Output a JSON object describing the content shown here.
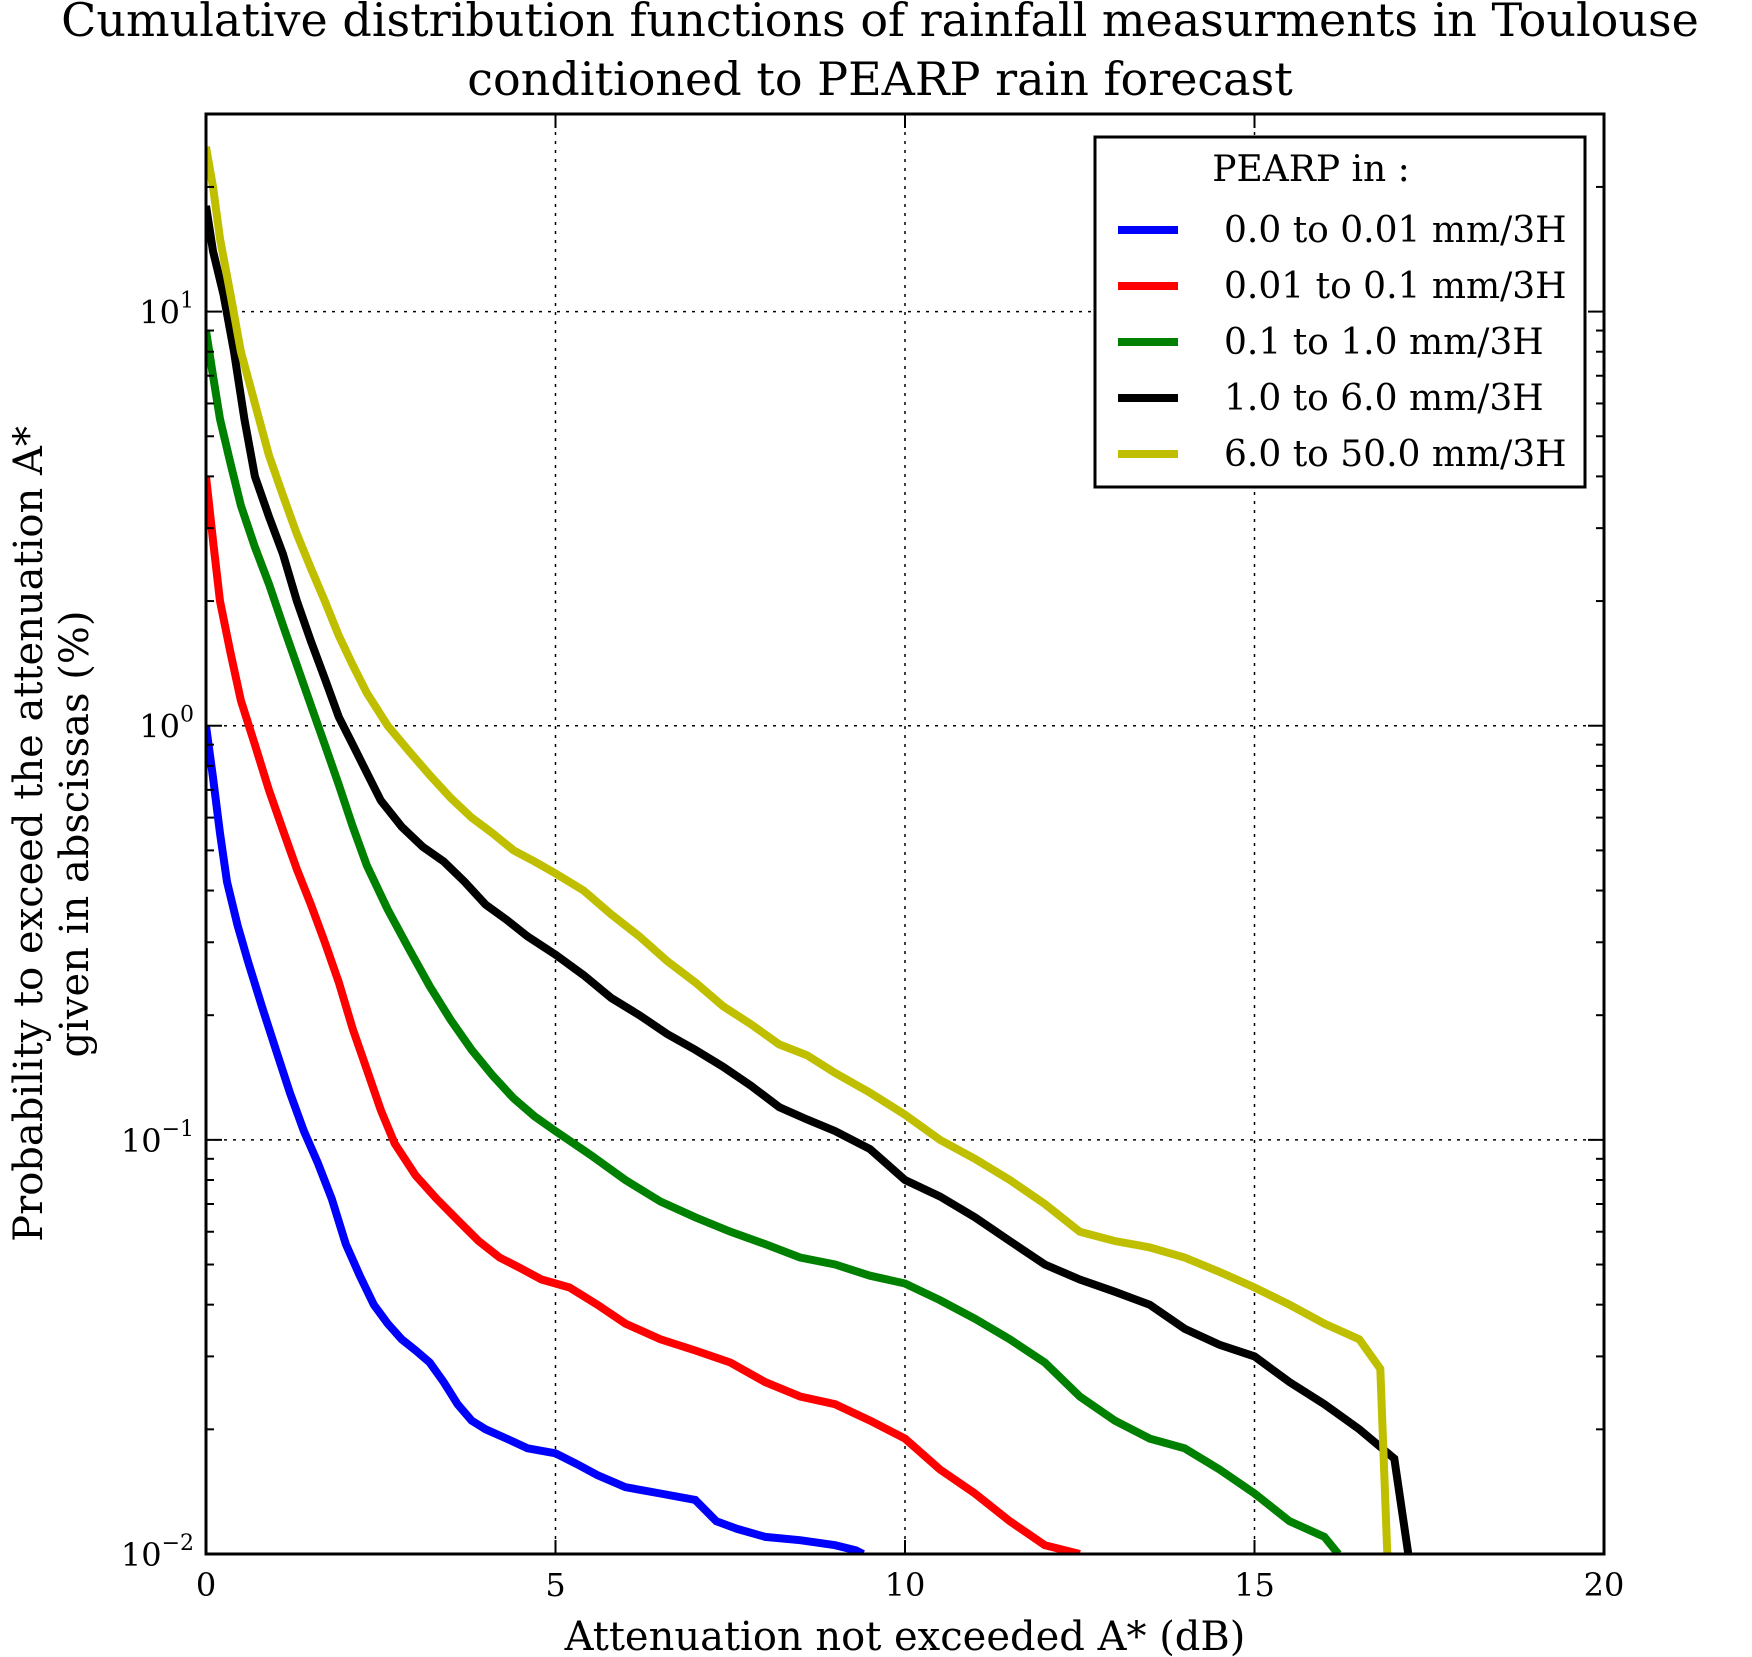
{
  "chart_data": {
    "type": "line",
    "title": "Cumulative distribution functions of rainfall measurments in Toulouse",
    "subtitle": "conditioned to PEARP rain forecast",
    "xlabel": "Attenuation not exceeded A* (dB)",
    "ylabel": "Probability to exceed the attenuation A*",
    "ylabel2": "given in abscissas (%)",
    "xlim": [
      0,
      20
    ],
    "ylim": [
      0.01,
      30
    ],
    "yscale": "log",
    "grid": true,
    "x_ticks": [
      "0",
      "5",
      "10",
      "15",
      "20"
    ],
    "y_ticks": [
      {
        "base": "10",
        "exp": "1"
      },
      {
        "base": "10",
        "exp": "0"
      },
      {
        "base": "10",
        "exp": "−1"
      },
      {
        "base": "10",
        "exp": "−2"
      }
    ],
    "legend": {
      "title": "PEARP in :",
      "position": "upper right"
    },
    "series": [
      {
        "name": "0.0 to 0.01 mm/3H",
        "color": "#0000ff",
        "x": [
          0.0,
          0.1,
          0.2,
          0.3,
          0.45,
          0.6,
          0.8,
          1.0,
          1.2,
          1.4,
          1.6,
          1.8,
          2.0,
          2.2,
          2.4,
          2.6,
          2.8,
          3.0,
          3.2,
          3.4,
          3.6,
          3.8,
          4.0,
          4.3,
          4.6,
          5.0,
          5.3,
          5.6,
          6.0,
          6.5,
          7.0,
          7.3,
          7.6,
          8.0,
          8.5,
          9.0,
          9.3,
          9.4
        ],
        "y": [
          1.0,
          0.75,
          0.55,
          0.42,
          0.33,
          0.27,
          0.21,
          0.165,
          0.13,
          0.105,
          0.088,
          0.072,
          0.056,
          0.047,
          0.04,
          0.036,
          0.033,
          0.031,
          0.029,
          0.026,
          0.023,
          0.021,
          0.02,
          0.019,
          0.018,
          0.0175,
          0.0165,
          0.0155,
          0.0145,
          0.014,
          0.0135,
          0.012,
          0.0115,
          0.011,
          0.0108,
          0.0105,
          0.0102,
          0.01
        ]
      },
      {
        "name": "0.01 to 0.1 mm/3H",
        "color": "#ff0000",
        "x": [
          0.0,
          0.1,
          0.2,
          0.35,
          0.5,
          0.7,
          0.9,
          1.1,
          1.3,
          1.5,
          1.7,
          1.9,
          2.1,
          2.3,
          2.5,
          2.7,
          3.0,
          3.3,
          3.6,
          3.9,
          4.2,
          4.5,
          4.8,
          5.2,
          5.6,
          6.0,
          6.5,
          7.0,
          7.5,
          8.0,
          8.5,
          9.0,
          9.5,
          10.0,
          10.5,
          11.0,
          11.5,
          12.0,
          12.5
        ],
        "y": [
          4.0,
          2.8,
          2.0,
          1.5,
          1.15,
          0.9,
          0.7,
          0.56,
          0.45,
          0.37,
          0.3,
          0.24,
          0.185,
          0.148,
          0.118,
          0.098,
          0.082,
          0.072,
          0.064,
          0.057,
          0.052,
          0.049,
          0.046,
          0.044,
          0.04,
          0.036,
          0.033,
          0.031,
          0.029,
          0.026,
          0.024,
          0.023,
          0.021,
          0.019,
          0.016,
          0.014,
          0.012,
          0.0105,
          0.01
        ]
      },
      {
        "name": "0.1 to 1.0 mm/3H",
        "color": "#008000",
        "x": [
          0.0,
          0.1,
          0.2,
          0.35,
          0.5,
          0.7,
          0.9,
          1.1,
          1.3,
          1.5,
          1.7,
          1.9,
          2.1,
          2.3,
          2.6,
          2.9,
          3.2,
          3.5,
          3.8,
          4.1,
          4.4,
          4.7,
          5.0,
          5.5,
          6.0,
          6.5,
          7.0,
          7.5,
          8.0,
          8.5,
          9.0,
          9.5,
          10.0,
          10.5,
          11.0,
          11.5,
          12.0,
          12.5,
          13.0,
          13.5,
          14.0,
          14.5,
          15.0,
          15.5,
          16.0,
          16.2
        ],
        "y": [
          9.0,
          7.0,
          5.5,
          4.3,
          3.4,
          2.7,
          2.2,
          1.75,
          1.4,
          1.12,
          0.9,
          0.72,
          0.57,
          0.46,
          0.36,
          0.29,
          0.235,
          0.195,
          0.165,
          0.143,
          0.126,
          0.114,
          0.105,
          0.092,
          0.08,
          0.071,
          0.065,
          0.06,
          0.056,
          0.052,
          0.05,
          0.047,
          0.045,
          0.041,
          0.037,
          0.033,
          0.029,
          0.024,
          0.021,
          0.019,
          0.018,
          0.016,
          0.014,
          0.012,
          0.011,
          0.01
        ]
      },
      {
        "name": "1.0 to 6.0 mm/3H",
        "color": "#000000",
        "x": [
          0.0,
          0.1,
          0.25,
          0.4,
          0.55,
          0.7,
          0.9,
          1.1,
          1.3,
          1.5,
          1.7,
          1.9,
          2.1,
          2.3,
          2.5,
          2.8,
          3.1,
          3.4,
          3.7,
          4.0,
          4.3,
          4.6,
          5.0,
          5.4,
          5.8,
          6.2,
          6.6,
          7.0,
          7.4,
          7.8,
          8.2,
          8.6,
          9.0,
          9.5,
          10.0,
          10.5,
          11.0,
          11.5,
          12.0,
          12.5,
          13.0,
          13.5,
          14.0,
          14.5,
          15.0,
          15.5,
          16.0,
          16.5,
          17.0,
          17.2
        ],
        "y": [
          18.0,
          14.0,
          11.0,
          8.0,
          5.5,
          4.0,
          3.2,
          2.6,
          2.0,
          1.6,
          1.3,
          1.05,
          0.9,
          0.77,
          0.66,
          0.57,
          0.51,
          0.47,
          0.42,
          0.37,
          0.34,
          0.31,
          0.28,
          0.25,
          0.22,
          0.2,
          0.18,
          0.165,
          0.15,
          0.135,
          0.12,
          0.112,
          0.105,
          0.095,
          0.08,
          0.073,
          0.065,
          0.057,
          0.05,
          0.046,
          0.043,
          0.04,
          0.035,
          0.032,
          0.03,
          0.026,
          0.023,
          0.02,
          0.017,
          0.01
        ]
      },
      {
        "name": "6.0 to 50.0 mm/3H",
        "color": "#bfbf00",
        "x": [
          0.0,
          0.1,
          0.2,
          0.35,
          0.5,
          0.7,
          0.9,
          1.1,
          1.3,
          1.5,
          1.7,
          1.9,
          2.1,
          2.3,
          2.6,
          2.9,
          3.2,
          3.5,
          3.8,
          4.1,
          4.4,
          4.7,
          5.0,
          5.4,
          5.8,
          6.2,
          6.6,
          7.0,
          7.4,
          7.8,
          8.2,
          8.6,
          9.0,
          9.5,
          10.0,
          10.5,
          11.0,
          11.5,
          12.0,
          12.5,
          13.0,
          13.5,
          14.0,
          14.5,
          15.0,
          15.5,
          16.0,
          16.5,
          16.8,
          16.9
        ],
        "y": [
          25.0,
          20.0,
          15.0,
          11.0,
          8.0,
          6.0,
          4.5,
          3.6,
          2.9,
          2.4,
          2.0,
          1.65,
          1.4,
          1.2,
          1.0,
          0.87,
          0.76,
          0.67,
          0.6,
          0.55,
          0.5,
          0.47,
          0.44,
          0.4,
          0.35,
          0.31,
          0.27,
          0.24,
          0.21,
          0.19,
          0.17,
          0.16,
          0.145,
          0.13,
          0.115,
          0.1,
          0.09,
          0.08,
          0.07,
          0.06,
          0.057,
          0.055,
          0.052,
          0.048,
          0.044,
          0.04,
          0.036,
          0.033,
          0.028,
          0.01
        ]
      }
    ]
  }
}
